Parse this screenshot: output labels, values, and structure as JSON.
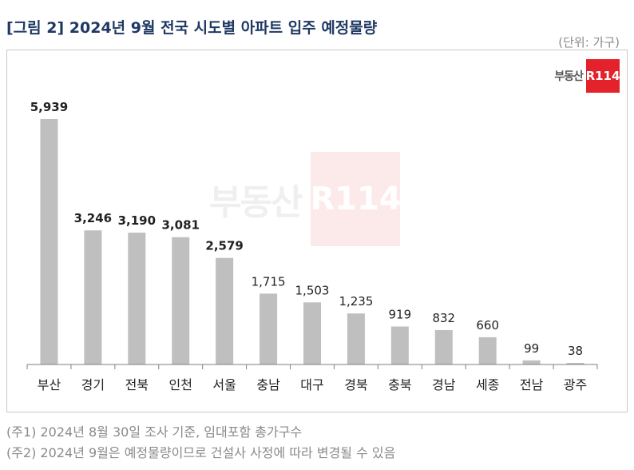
{
  "figure": {
    "title": "[그림 2] 2024년 9월 전국 시도별 아파트 입주 예정물량",
    "unit": "(단위: 가구)",
    "logo_text": "부동산",
    "logo_mark": "R114"
  },
  "notes": [
    "(주1) 2024년 8월 30일 조사 기준, 임대포함 총가구수",
    "(주2) 2024년 9월은 예정물량이므로 건설사 사정에 따라 변경될 수 있음"
  ],
  "colors": {
    "bar": "#bfbfbf",
    "title": "#1f3864",
    "brand": "#e3222b",
    "axis": "#7f7f7f"
  },
  "chart_data": {
    "type": "bar",
    "title": "",
    "xlabel": "",
    "ylabel": "",
    "categories": [
      "부산",
      "경기",
      "전북",
      "인천",
      "서울",
      "충남",
      "대구",
      "경북",
      "충북",
      "경남",
      "세종",
      "전남",
      "광주"
    ],
    "values": [
      5939,
      3246,
      3190,
      3081,
      2579,
      1715,
      1503,
      1235,
      919,
      832,
      660,
      99,
      38
    ],
    "labels": [
      "5,939",
      "3,246",
      "3,190",
      "3,081",
      "2,579",
      "1,715",
      "1,503",
      "1,235",
      "919",
      "832",
      "660",
      "99",
      "38"
    ],
    "bold_labels_first_n": 5,
    "ylim": [
      0,
      6500
    ],
    "grid": false,
    "legend": "none"
  }
}
